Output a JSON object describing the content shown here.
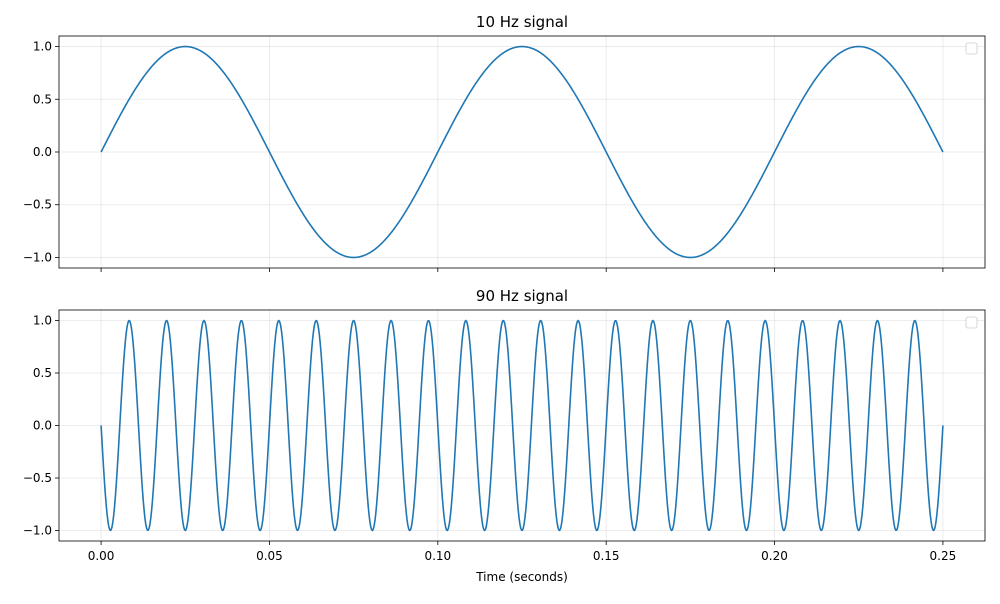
{
  "chart_data": [
    {
      "type": "line",
      "title": "10 Hz signal",
      "xlabel": "",
      "ylabel": "",
      "xlim": [
        -0.0125,
        0.2625
      ],
      "ylim": [
        -1.1,
        1.1
      ],
      "xticks": [
        0.0,
        0.05,
        0.1,
        0.15,
        0.2,
        0.25
      ],
      "xtick_labels": [],
      "yticks": [
        -1.0,
        -0.5,
        0.0,
        0.5,
        1.0
      ],
      "ytick_labels": [
        "−1.0",
        "−0.5",
        "0.0",
        "0.5",
        "1.0"
      ],
      "grid": true,
      "legend": "upper-right (empty)",
      "series": [
        {
          "color": "#1f77b4",
          "function": "sin",
          "frequency_hz": 10,
          "amplitude": 1.0,
          "x_start": 0.0,
          "x_end": 0.25,
          "sample_count": 1000
        }
      ]
    },
    {
      "type": "line",
      "title": "90 Hz signal",
      "xlabel": "Time (seconds)",
      "ylabel": "",
      "xlim": [
        -0.0125,
        0.2625
      ],
      "ylim": [
        -1.1,
        1.1
      ],
      "xticks": [
        0.0,
        0.05,
        0.1,
        0.15,
        0.2,
        0.25
      ],
      "xtick_labels": [
        "0.00",
        "0.05",
        "0.10",
        "0.15",
        "0.20",
        "0.25"
      ],
      "yticks": [
        -1.0,
        -0.5,
        0.0,
        0.5,
        1.0
      ],
      "ytick_labels": [
        "−1.0",
        "−0.5",
        "0.0",
        "0.5",
        "1.0"
      ],
      "grid": true,
      "legend": "upper-right (empty)",
      "series": [
        {
          "color": "#1f77b4",
          "function": "-sin",
          "frequency_hz": 90,
          "amplitude": 1.0,
          "x_start": 0.0,
          "x_end": 0.25,
          "sample_count": 1000
        }
      ]
    }
  ]
}
